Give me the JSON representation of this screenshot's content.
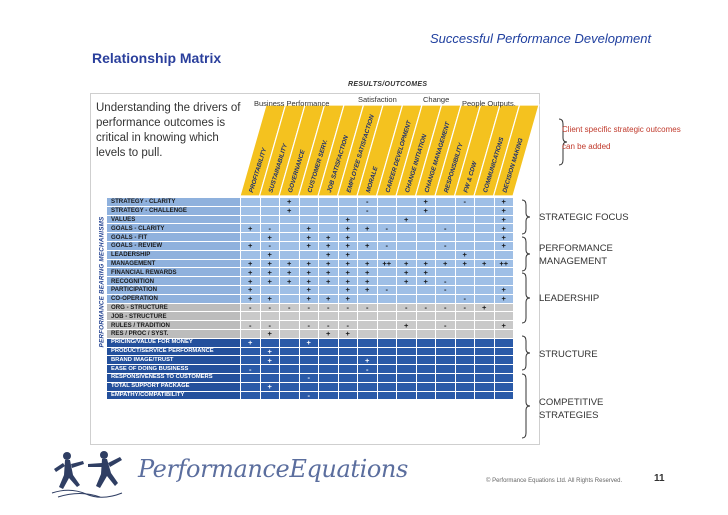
{
  "header": {
    "slide_title": "Successful Performance Development",
    "section_title": "Relationship Matrix",
    "results_label": "RESULTS/OUTCOMES",
    "group_labels": [
      "Business Performance",
      "Satisfaction",
      "Change",
      "People Outputs."
    ]
  },
  "intro_text": "Understanding the drivers of performance outcomes is critical in knowing which levels to pull.",
  "vertical_label": "PERFORMANCE BEARING MECHANISMS",
  "columns": [
    "PROFITABILITY",
    "SUSTAINABILITY",
    "GOVERNANCE",
    "CUSTOMER SERV.",
    "JOB SATISFACTION",
    "EMPLOYEE SATISFACTION",
    "MORALE",
    "CAREER DEVELOPMENT",
    "CHANGE INITIATION",
    "CHANGE MANAGEMENT",
    "RESPONSIBILITY",
    "FW & CDW",
    "COMMUNICATIONS",
    "DECISION MAKING"
  ],
  "rows": [
    {
      "label": "STRATEGY - CLARITY",
      "style": "blue",
      "cells": [
        "",
        "",
        "+",
        "",
        "",
        "",
        "-",
        "",
        "",
        "+",
        "",
        "-",
        "",
        "+"
      ]
    },
    {
      "label": "STRATEGY - CHALLENGE",
      "style": "blue",
      "cells": [
        "",
        "",
        "+",
        "",
        "",
        "",
        "-",
        "",
        "",
        "+",
        "",
        "",
        "",
        "+"
      ]
    },
    {
      "label": "VALUES",
      "style": "blue",
      "cells": [
        "",
        "",
        "",
        "",
        "",
        "+",
        "",
        "",
        "+",
        "",
        "",
        "",
        "",
        "+"
      ]
    },
    {
      "label": "GOALS - CLARITY",
      "style": "blue",
      "cells": [
        "+",
        "-",
        "",
        "+",
        "",
        "+",
        "+",
        "-",
        "",
        "",
        "-",
        "",
        "",
        "+"
      ]
    },
    {
      "label": "GOALS - FIT",
      "style": "blue",
      "cells": [
        "",
        "+",
        "",
        "+",
        "+",
        "+",
        "",
        "",
        "",
        "",
        "",
        "",
        "",
        "+"
      ]
    },
    {
      "label": "GOALS - REVIEW",
      "style": "blue",
      "cells": [
        "+",
        "-",
        "",
        "+",
        "+",
        "+",
        "+",
        "-",
        "",
        "",
        "-",
        "",
        "",
        "+"
      ]
    },
    {
      "label": "LEADERSHIP",
      "style": "blue",
      "cells": [
        "",
        "+",
        "",
        "",
        "+",
        "+",
        "",
        "",
        "",
        "",
        "",
        "+",
        "",
        ""
      ]
    },
    {
      "label": "MANAGEMENT",
      "style": "blue",
      "cells": [
        "+",
        "+",
        "+",
        "+",
        "+",
        "+",
        "+",
        "++",
        "+",
        "+",
        "+",
        "+",
        "+",
        "++"
      ]
    },
    {
      "label": "FINANCIAL REWARDS",
      "style": "blue",
      "cells": [
        "+",
        "+",
        "+",
        "+",
        "+",
        "+",
        "+",
        "",
        "+",
        "+",
        "",
        "",
        "",
        ""
      ]
    },
    {
      "label": "RECOGNITION",
      "style": "blue",
      "cells": [
        "+",
        "+",
        "+",
        "+",
        "+",
        "+",
        "+",
        "",
        "+",
        "+",
        "-",
        "",
        "",
        ""
      ]
    },
    {
      "label": "PARTICIPATION",
      "style": "blue",
      "cells": [
        "+",
        "",
        "",
        "+",
        "",
        "+",
        "+",
        "-",
        "",
        "",
        "-",
        "",
        "",
        "+"
      ]
    },
    {
      "label": "CO-OPERATION",
      "style": "blue",
      "cells": [
        "+",
        "+",
        "",
        "+",
        "+",
        "+",
        "",
        "",
        "",
        "",
        "",
        "-",
        "",
        "+"
      ]
    },
    {
      "label": "ORG - STRUCTURE",
      "style": "gray",
      "cells": [
        "-",
        "-",
        "-",
        "-",
        "-",
        "-",
        "-",
        "",
        "-",
        "-",
        "-",
        "-",
        "+",
        ""
      ]
    },
    {
      "label": "JOB - STRUCTURE",
      "style": "gray",
      "cells": [
        "",
        "",
        "",
        "",
        "",
        "",
        "",
        "",
        "",
        "",
        "",
        "",
        "",
        ""
      ]
    },
    {
      "label": "RULES / TRADITION",
      "style": "gray",
      "cells": [
        "-",
        "-",
        "",
        "-",
        "-",
        "-",
        "",
        "",
        "+",
        "",
        "-",
        "",
        "",
        "+"
      ]
    },
    {
      "label": "RES / PROC / SYST.",
      "style": "gray",
      "cells": [
        "",
        "+",
        "",
        "",
        "+",
        "+",
        "",
        "",
        "",
        "",
        "",
        "",
        "",
        ""
      ]
    },
    {
      "label": "PRICING/VALUE FOR MONEY",
      "style": "dark",
      "cells": [
        "+",
        "",
        "",
        "+",
        "",
        "",
        "",
        "",
        "",
        "",
        "",
        "",
        "",
        ""
      ]
    },
    {
      "label": "PRODUCT/SERVICE PERFORMANCE",
      "style": "dark",
      "cells": [
        "",
        "+",
        "",
        "",
        "",
        "",
        "",
        "",
        "",
        "",
        "",
        "",
        "",
        ""
      ]
    },
    {
      "label": "BRAND IMAGE/TRUST",
      "style": "dark",
      "cells": [
        "",
        "+",
        "",
        "",
        "",
        "",
        "+",
        "",
        "",
        "",
        "",
        "",
        "",
        ""
      ]
    },
    {
      "label": "EASE OF DOING BUSINESS",
      "style": "dark",
      "cells": [
        "-",
        "",
        "",
        "",
        "",
        "",
        "-",
        "",
        "",
        "",
        "",
        "",
        "",
        ""
      ]
    },
    {
      "label": "RESPONSIVENESS TO CUSTOMERS",
      "style": "dark",
      "cells": [
        "",
        "",
        "",
        "-",
        "",
        "",
        "",
        "",
        "",
        "",
        "",
        "",
        "",
        ""
      ]
    },
    {
      "label": "TOTAL SUPPORT PACKAGE",
      "style": "dark",
      "cells": [
        "",
        "+",
        "",
        "",
        "",
        "",
        "",
        "",
        "",
        "",
        "",
        "",
        "",
        ""
      ]
    },
    {
      "label": "EMPATHY/COMPATIBILITY",
      "style": "dark",
      "cells": [
        "",
        "",
        "",
        "-",
        "",
        "",
        "",
        "",
        "",
        "",
        "",
        "",
        "",
        ""
      ]
    }
  ],
  "client_note": "Client specific strategic outcomes can be added",
  "right_labels": [
    "STRATEGIC FOCUS",
    "PERFORMANCE MANAGEMENT",
    "LEADERSHIP",
    "STRUCTURE",
    "COMPETITIVE STRATEGIES"
  ],
  "footer": {
    "logo_text": "PerformanceEquations",
    "copyright": "© Performance Equations Ltd. All Rights Reserved.",
    "page_number": "11"
  },
  "colors": {
    "title_blue": "#1f3f9f",
    "yellow": "#f4c21f",
    "row_blue": "#9fbfe6",
    "row_gray": "#c9c9c9",
    "row_dark": "#2a5aa8",
    "note_red": "#c0392b"
  }
}
